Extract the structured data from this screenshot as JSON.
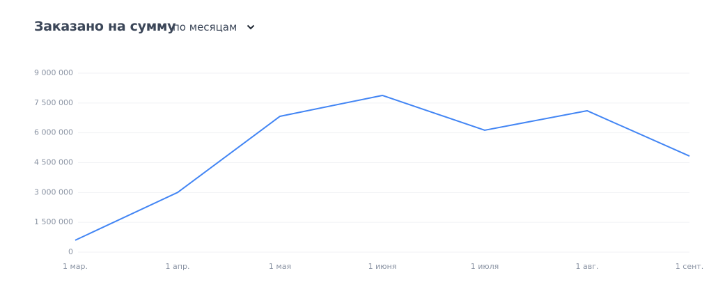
{
  "chart_data": {
    "type": "line",
    "title": "Заказано на сумму",
    "period_selector": "по месяцам",
    "categories": [
      "1 мар.",
      "1 апр.",
      "1 мая",
      "1 июня",
      "1 июля",
      "1 авг.",
      "1 сент."
    ],
    "series": [
      {
        "color": "#4285f4",
        "values": [
          600000,
          3000000,
          6830000,
          7880000,
          6130000,
          7110000,
          4830000
        ]
      }
    ],
    "ylim": [
      0,
      9000000
    ],
    "yticks": [
      0,
      {
        "value": 1500000,
        "label": "1 500 000"
      },
      {
        "value": 3000000,
        "label": "3 000 000"
      },
      {
        "value": 4500000,
        "label": "4 500 000"
      },
      {
        "value": 6000000,
        "label": "6 000 000"
      },
      {
        "value": 7500000,
        "label": "7 500 000"
      },
      {
        "value": 9000000,
        "label": "9 000 000"
      }
    ],
    "grid": true
  }
}
